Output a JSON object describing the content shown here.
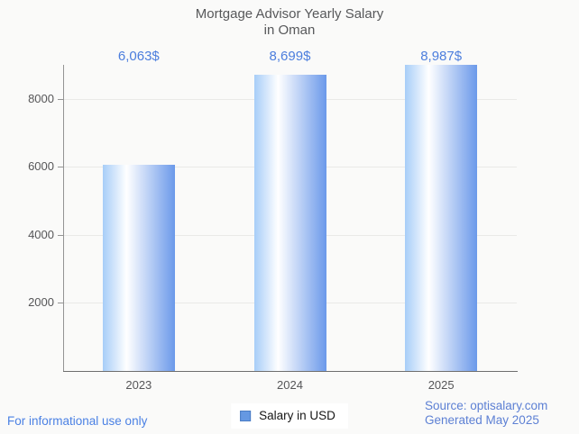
{
  "title": {
    "line1": "Mortgage Advisor Yearly Salary",
    "line2": "in Oman"
  },
  "chart_data": {
    "type": "bar",
    "title": "Mortgage Advisor Yearly Salary in Oman",
    "categories": [
      "2023",
      "2024",
      "2025"
    ],
    "values": [
      6063,
      8699,
      8987
    ],
    "value_labels": [
      "6,063$",
      "8,699$",
      "8,987$"
    ],
    "xlabel": "",
    "ylabel": "",
    "y_ticks": [
      2000,
      4000,
      6000,
      8000
    ],
    "ylim": [
      0,
      9000
    ],
    "grid": true,
    "legend": [
      "Salary in USD"
    ],
    "legend_position": "bottom-center"
  },
  "legend": {
    "label": "Salary in USD",
    "marker_color": "#6598e2"
  },
  "footer": {
    "disclaimer": "For informational use only",
    "source_line1": "Source: optisalary.com",
    "source_line2": "Generated May 2025"
  },
  "colors": {
    "value_label_blue": "#4c7edd",
    "bar_gradient_left": "#a7cdf8",
    "bar_gradient_mid": "#ffffff",
    "bar_gradient_right": "#6b99ea",
    "disclaimer_blue": "#4b81e4",
    "source_blue": "#5d80d4",
    "title_gray": "#57585a",
    "axis_gray": "#949494",
    "grid_gray": "#e9e9e7",
    "background": "#fafaf9"
  }
}
